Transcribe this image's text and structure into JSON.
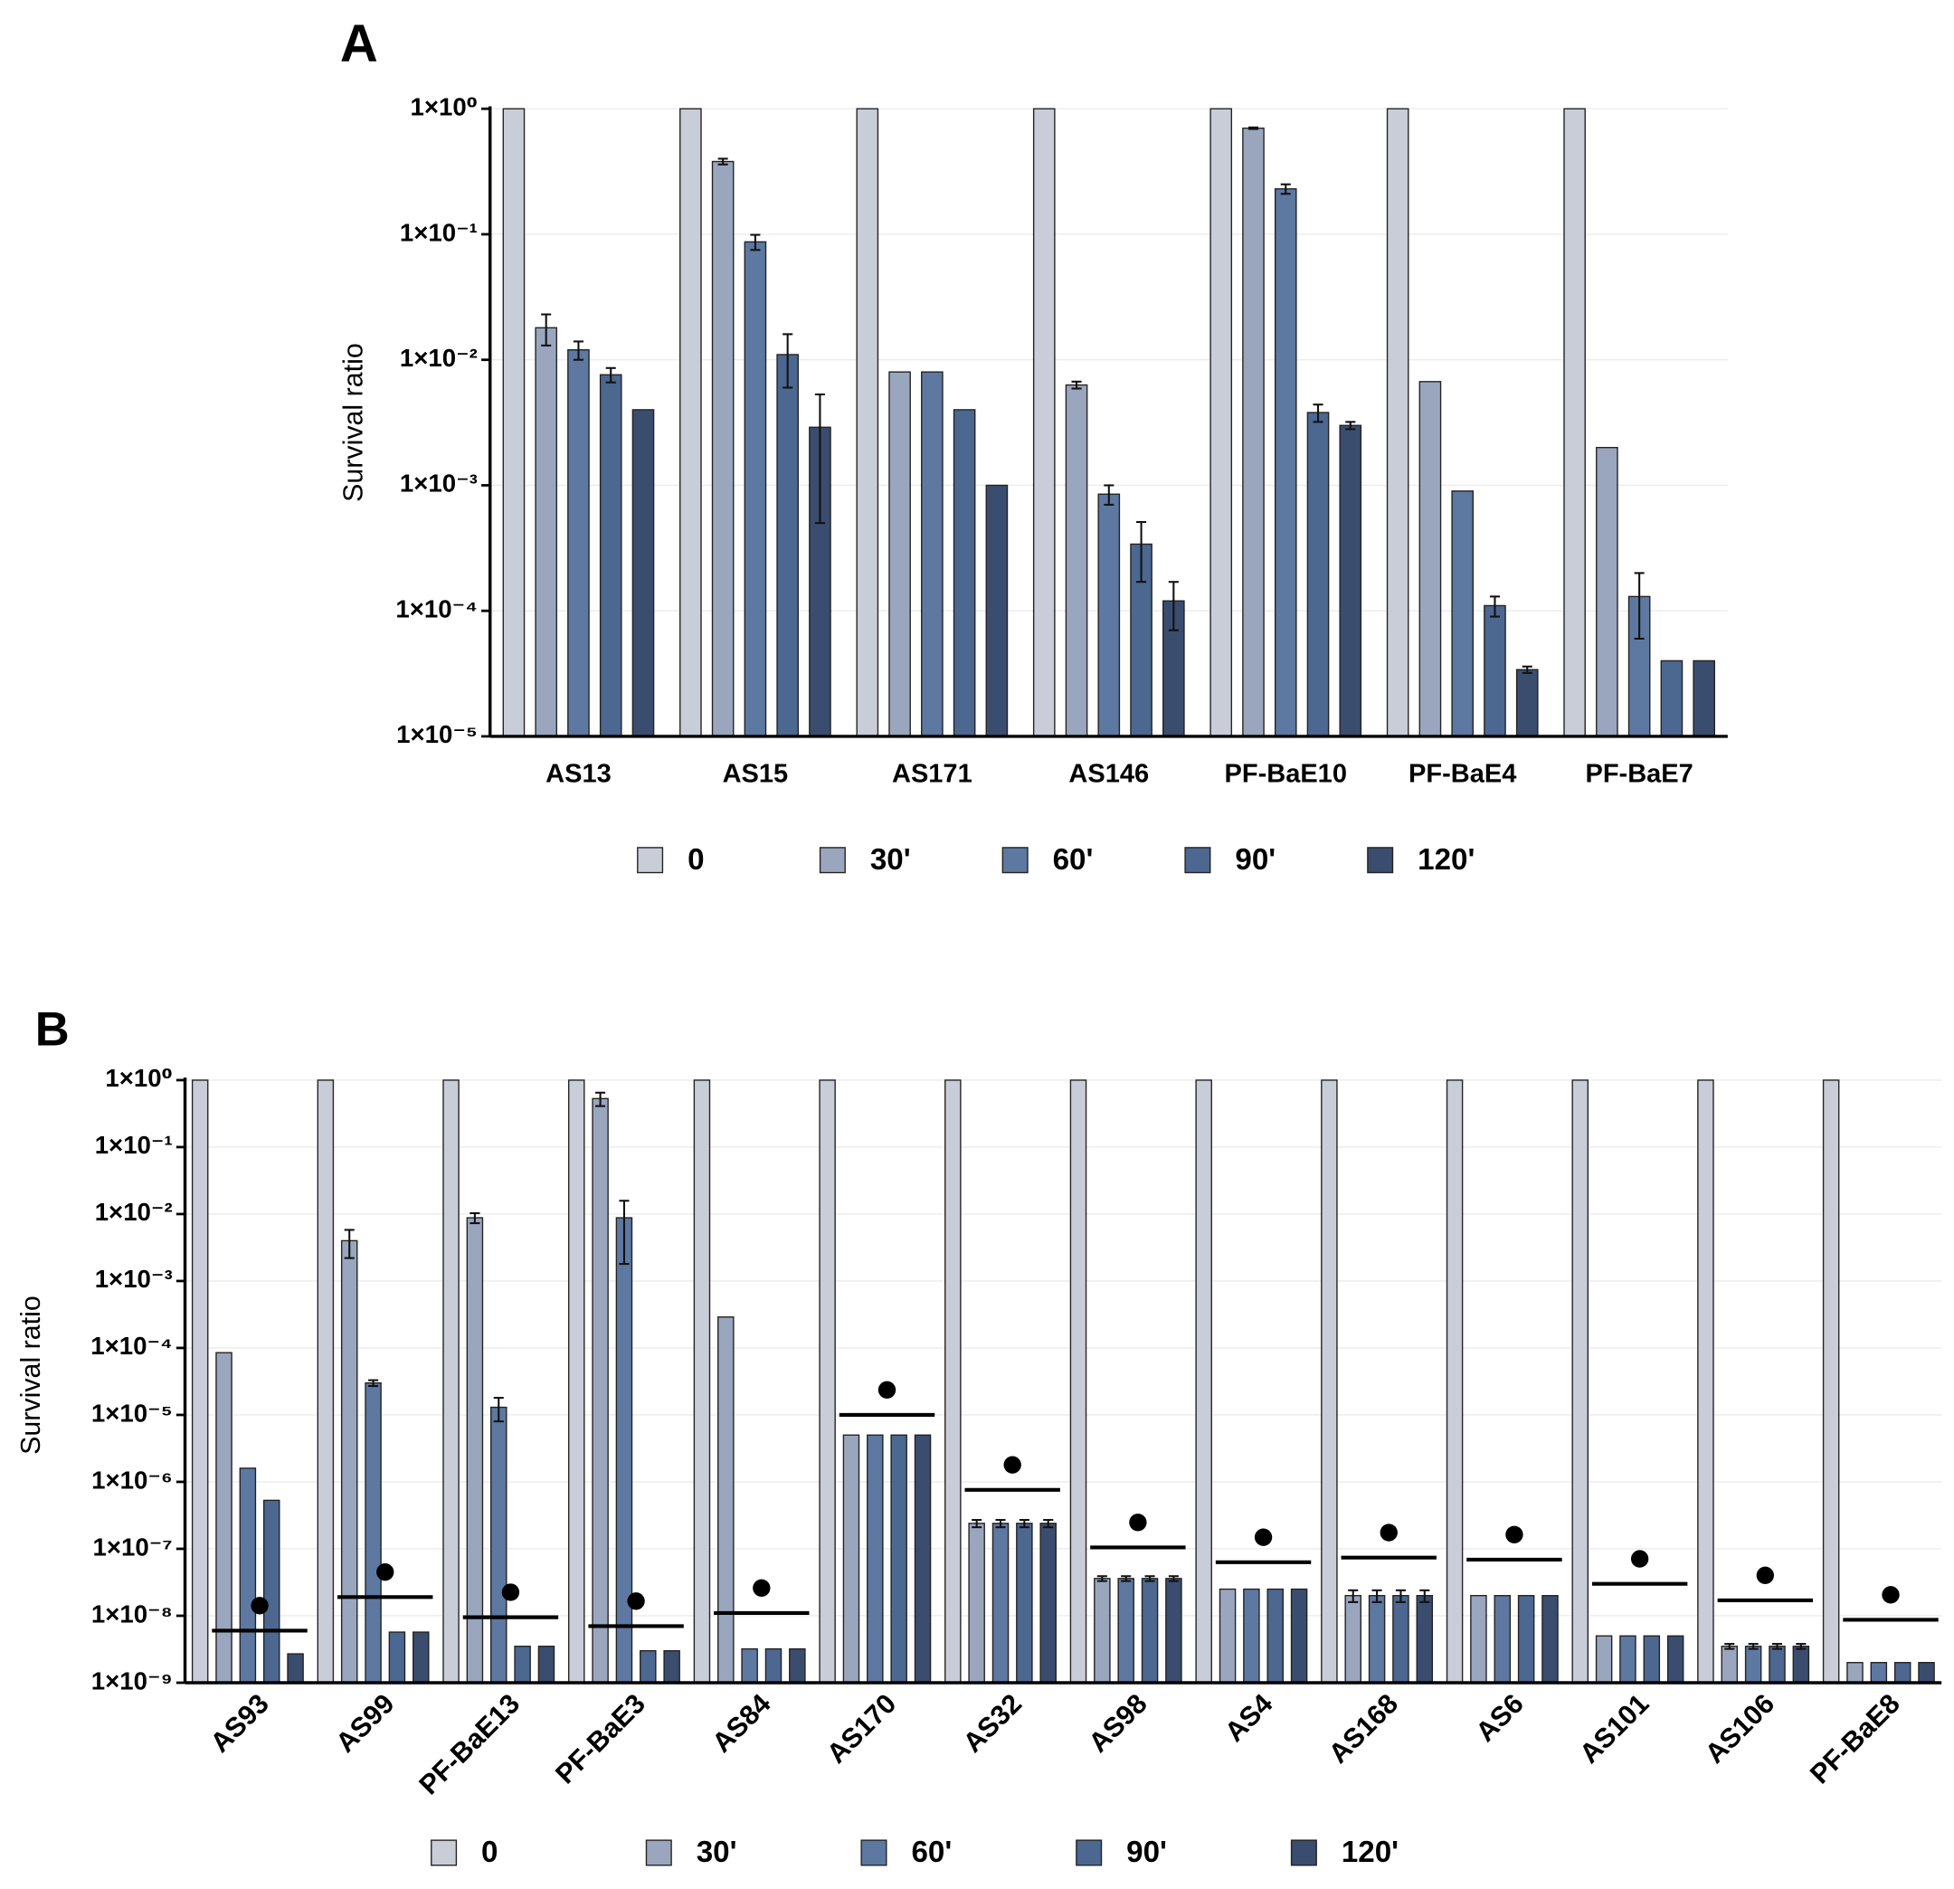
{
  "chart_data": [
    {
      "type": "bar",
      "panel_label": "A",
      "y_label": "Survival ratio",
      "log_scale": true,
      "grid": true,
      "categories": [
        "AS13",
        "AS15",
        "AS171",
        "AS146",
        "PF-BaE10",
        "PF-BaE4",
        "PF-BaE7"
      ],
      "ylim": [
        1e-05,
        1
      ],
      "yticks": [
        {
          "value": 1,
          "label": "1×10⁰"
        },
        {
          "value": 0.1,
          "label": "1×10⁻¹"
        },
        {
          "value": 0.01,
          "label": "1×10⁻²"
        },
        {
          "value": 0.001,
          "label": "1×10⁻³"
        },
        {
          "value": 0.0001,
          "label": "1×10⁻⁴"
        },
        {
          "value": 1e-05,
          "label": "1×10⁻⁵"
        }
      ],
      "series": [
        {
          "name": "0",
          "color": "#c9cdd7",
          "values": [
            1,
            1,
            1,
            1,
            1,
            1,
            1
          ],
          "errors": [
            null,
            null,
            null,
            null,
            null,
            null,
            null
          ]
        },
        {
          "name": "30'",
          "color": "#9aa6bd",
          "values": [
            0.018,
            0.38,
            0.008,
            0.0063,
            0.7,
            0.0067,
            0.002
          ],
          "errors": [
            0.005,
            0.02,
            null,
            0.0004,
            0.01,
            null,
            null
          ]
        },
        {
          "name": "60'",
          "color": "#5d78a1",
          "values": [
            0.012,
            0.087,
            0.008,
            0.00085,
            0.23,
            0.0009,
            0.00013
          ],
          "errors": [
            0.002,
            0.012,
            null,
            0.00015,
            0.02,
            null,
            7e-05
          ]
        },
        {
          "name": "90'",
          "color": "#4c6790",
          "values": [
            0.0076,
            0.011,
            0.004,
            0.00034,
            0.0038,
            0.00011,
            4e-05
          ],
          "errors": [
            0.001,
            0.005,
            null,
            0.00017,
            0.0006,
            2e-05,
            null
          ]
        },
        {
          "name": "120'",
          "color": "#3a4d6e",
          "values": [
            0.004,
            0.0029,
            0.001,
            0.00012,
            0.003,
            3.4e-05,
            4e-05
          ],
          "errors": [
            null,
            0.0024,
            null,
            5e-05,
            0.0002,
            2e-06,
            null
          ]
        }
      ]
    },
    {
      "type": "bar",
      "panel_label": "B",
      "y_label": "Survival ratio",
      "log_scale": true,
      "grid": true,
      "categories": [
        "AS93",
        "AS99",
        "PF-BaE13",
        "PF-BaE3",
        "AS84",
        "AS170",
        "AS32",
        "AS98",
        "AS4",
        "AS168",
        "AS6",
        "AS101",
        "AS106",
        "PF-BaE8"
      ],
      "ylim": [
        1e-09,
        1
      ],
      "yticks": [
        {
          "value": 1,
          "label": "1×10⁰"
        },
        {
          "value": 0.1,
          "label": "1×10⁻¹"
        },
        {
          "value": 0.01,
          "label": "1×10⁻²"
        },
        {
          "value": 0.001,
          "label": "1×10⁻³"
        },
        {
          "value": 0.0001,
          "label": "1×10⁻⁴"
        },
        {
          "value": 1e-05,
          "label": "1×10⁻⁵"
        },
        {
          "value": 1e-06,
          "label": "1×10⁻⁶"
        },
        {
          "value": 1e-07,
          "label": "1×10⁻⁷"
        },
        {
          "value": 1e-08,
          "label": "1×10⁻⁸"
        },
        {
          "value": 1e-09,
          "label": "1×10⁻⁹"
        }
      ],
      "series": [
        {
          "name": "0",
          "color": "#c9cdd7",
          "values": [
            1,
            1,
            1,
            1,
            1,
            1,
            1,
            1,
            1,
            1,
            1,
            1,
            1,
            1
          ],
          "errors": [
            null,
            null,
            null,
            null,
            null,
            null,
            null,
            null,
            null,
            null,
            null,
            null,
            null,
            null
          ]
        },
        {
          "name": "30'",
          "color": "#9aa6bd",
          "values": [
            8.5e-05,
            0.004,
            0.0088,
            0.53,
            0.00029,
            5e-06,
            2.4e-07,
            3.6e-08,
            2.5e-08,
            2e-08,
            2e-08,
            5e-09,
            3.5e-09,
            2e-09
          ],
          "errors": [
            null,
            0.0018,
            0.0015,
            0.12,
            null,
            null,
            3e-08,
            3e-09,
            null,
            4e-09,
            null,
            null,
            3e-10,
            null
          ]
        },
        {
          "name": "60'",
          "color": "#5d78a1",
          "values": [
            1.6e-06,
            3e-05,
            1.3e-05,
            0.0088,
            3.2e-09,
            5e-06,
            2.4e-07,
            3.6e-08,
            2.5e-08,
            2e-08,
            2e-08,
            5e-09,
            3.5e-09,
            2e-09
          ],
          "errors": [
            null,
            3e-06,
            5e-06,
            0.007,
            null,
            null,
            3e-08,
            3e-09,
            null,
            4e-09,
            null,
            null,
            3e-10,
            null
          ]
        },
        {
          "name": "90'",
          "color": "#4c6790",
          "values": [
            5.3e-07,
            5.7e-09,
            3.5e-09,
            3e-09,
            3.2e-09,
            5e-06,
            2.4e-07,
            3.6e-08,
            2.5e-08,
            2e-08,
            2e-08,
            5e-09,
            3.5e-09,
            2e-09
          ],
          "errors": [
            null,
            null,
            null,
            null,
            null,
            null,
            3e-08,
            3e-09,
            null,
            4e-09,
            null,
            null,
            3e-10,
            null
          ]
        },
        {
          "name": "120'",
          "color": "#3a4d6e",
          "values": [
            2.7e-09,
            5.7e-09,
            3.5e-09,
            3e-09,
            3.2e-09,
            5e-06,
            2.4e-07,
            3.6e-08,
            2.5e-08,
            2e-08,
            2e-08,
            5e-09,
            3.5e-09,
            2e-09
          ],
          "errors": [
            null,
            null,
            null,
            null,
            null,
            null,
            3e-08,
            3e-09,
            null,
            4e-09,
            null,
            null,
            3e-10,
            null
          ]
        }
      ],
      "detection_limits": [
        6e-09,
        1.9e-08,
        9.5e-09,
        7e-09,
        1.1e-08,
        1e-05,
        7.6e-07,
        1.05e-07,
        6.3e-08,
        7.4e-08,
        6.9e-08,
        3e-08,
        1.7e-08,
        8.7e-09
      ]
    }
  ]
}
